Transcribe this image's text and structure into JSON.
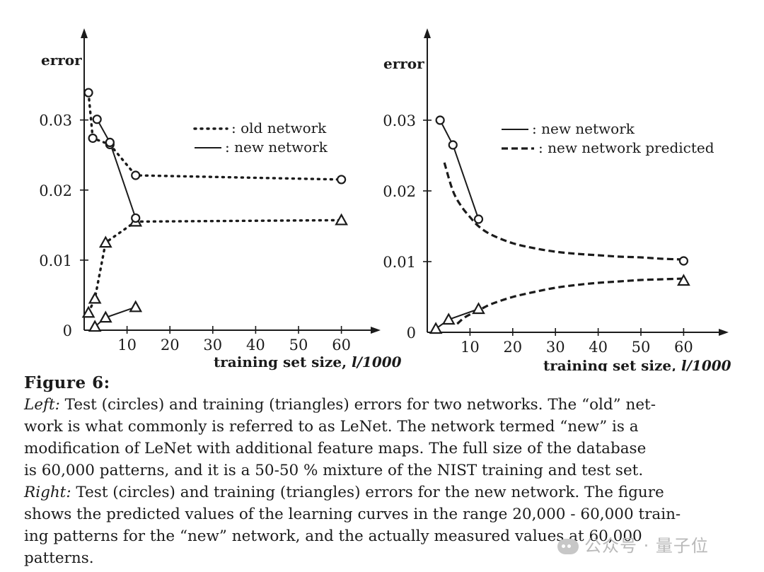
{
  "chart_data": [
    {
      "type": "line",
      "ylabel": "error",
      "xlabel": "training set size, ",
      "xlabel_unit": "l/1000",
      "xlim": [
        0,
        63
      ],
      "ylim": [
        0,
        0.035
      ],
      "x_ticks": [
        10,
        20,
        30,
        40,
        50,
        60
      ],
      "y_ticks": [
        0,
        0.01,
        0.02,
        0.03
      ],
      "y_tick_labels": [
        "0",
        "0.01",
        "0.02",
        "0.03"
      ],
      "legend": [
        {
          "style": "dotted",
          "label": ": old network"
        },
        {
          "style": "solid",
          "label": ": new network"
        }
      ],
      "legend_position": "top-right",
      "series": [
        {
          "legend": "old network",
          "kind": "test",
          "marker": "circle",
          "style": "dotted",
          "x": [
            1,
            2,
            6,
            12,
            60
          ],
          "y": [
            0.0339,
            0.0274,
            0.0265,
            0.0221,
            0.0215
          ]
        },
        {
          "legend": "old network",
          "kind": "training",
          "marker": "triangle",
          "style": "dotted",
          "x": [
            1,
            2.5,
            5,
            12,
            60
          ],
          "y": [
            0.0025,
            0.0045,
            0.0125,
            0.0155,
            0.0157
          ]
        },
        {
          "legend": "new network",
          "kind": "test",
          "marker": "circle",
          "style": "solid",
          "x": [
            3,
            6,
            12
          ],
          "y": [
            0.0301,
            0.0268,
            0.016
          ]
        },
        {
          "legend": "new network",
          "kind": "training",
          "marker": "triangle",
          "style": "solid",
          "x": [
            2.5,
            5,
            12
          ],
          "y": [
            0.0005,
            0.0018,
            0.0033
          ]
        }
      ]
    },
    {
      "type": "line",
      "ylabel": "error",
      "xlabel": "training set size, ",
      "xlabel_unit": "l/1000",
      "xlim": [
        0,
        63
      ],
      "ylim": [
        0,
        0.035
      ],
      "x_ticks": [
        10,
        20,
        30,
        40,
        50,
        60
      ],
      "y_ticks": [
        0,
        0.01,
        0.02,
        0.03
      ],
      "y_tick_labels": [
        "0",
        "0.01",
        "0.02",
        "0.03"
      ],
      "legend": [
        {
          "style": "solid",
          "label": ": new network"
        },
        {
          "style": "dashed",
          "label": ": new network predicted"
        }
      ],
      "legend_position": "top-right",
      "series": [
        {
          "legend": "new network",
          "kind": "test",
          "marker": "circle",
          "style": "solid",
          "x": [
            3,
            6,
            12
          ],
          "y": [
            0.03,
            0.0265,
            0.016
          ]
        },
        {
          "legend": "new network",
          "kind": "training",
          "marker": "triangle",
          "style": "solid",
          "x": [
            2,
            5,
            12
          ],
          "y": [
            0.0005,
            0.0018,
            0.0033
          ]
        },
        {
          "legend": "new network",
          "kind": "test (measured at 60,000)",
          "marker": "circle",
          "style": "none",
          "x": [
            60
          ],
          "y": [
            0.0101
          ]
        },
        {
          "legend": "new network",
          "kind": "training (measured at 60,000)",
          "marker": "triangle",
          "style": "none",
          "x": [
            60
          ],
          "y": [
            0.0073
          ]
        },
        {
          "legend": "new network predicted",
          "kind": "test",
          "marker": "none",
          "style": "dashed",
          "x": [
            4,
            6,
            8,
            10,
            12,
            15,
            20,
            25,
            30,
            35,
            40,
            45,
            50,
            55,
            60
          ],
          "y": [
            0.024,
            0.02,
            0.0178,
            0.0163,
            0.015,
            0.0138,
            0.0126,
            0.0119,
            0.0114,
            0.0111,
            0.0109,
            0.0107,
            0.0106,
            0.0104,
            0.0103
          ]
        },
        {
          "legend": "new network predicted",
          "kind": "training",
          "marker": "none",
          "style": "dashed",
          "x": [
            7,
            9,
            12,
            15,
            20,
            25,
            30,
            35,
            40,
            45,
            50,
            55,
            60
          ],
          "y": [
            0.0012,
            0.0022,
            0.0031,
            0.004,
            0.005,
            0.0057,
            0.0063,
            0.0067,
            0.007,
            0.0072,
            0.0074,
            0.0075,
            0.0076
          ]
        }
      ]
    }
  ],
  "caption": {
    "title": "Figure 6:",
    "lines": [
      {
        "lead": "Left:",
        "text": " Test (circles) and training (triangles) errors for two networks. The “old” net-"
      },
      {
        "lead": "",
        "text": "work is what commonly is referred to as LeNet. The network termed “new” is a"
      },
      {
        "lead": "",
        "text": "modification of LeNet with additional feature maps. The full size of the database"
      },
      {
        "lead": "",
        "text": "is 60,000 patterns, and it is a 50-50 % mixture of the NIST training and test set."
      },
      {
        "lead": "Right:",
        "text": " Test (circles) and training (triangles) errors for the new network. The figure"
      },
      {
        "lead": "",
        "text": "shows the predicted values of the learning curves in the range 20,000 - 60,000 train-"
      },
      {
        "lead": "",
        "text": "ing patterns for the “new” network, and the actually measured values at 60,000"
      },
      {
        "lead": "",
        "text": "patterns."
      }
    ]
  },
  "watermark": "公众号 · 量子位",
  "colors": {
    "ink": "#1b1b1b",
    "background": "#ffffff",
    "watermark": "#b9b9b9"
  }
}
